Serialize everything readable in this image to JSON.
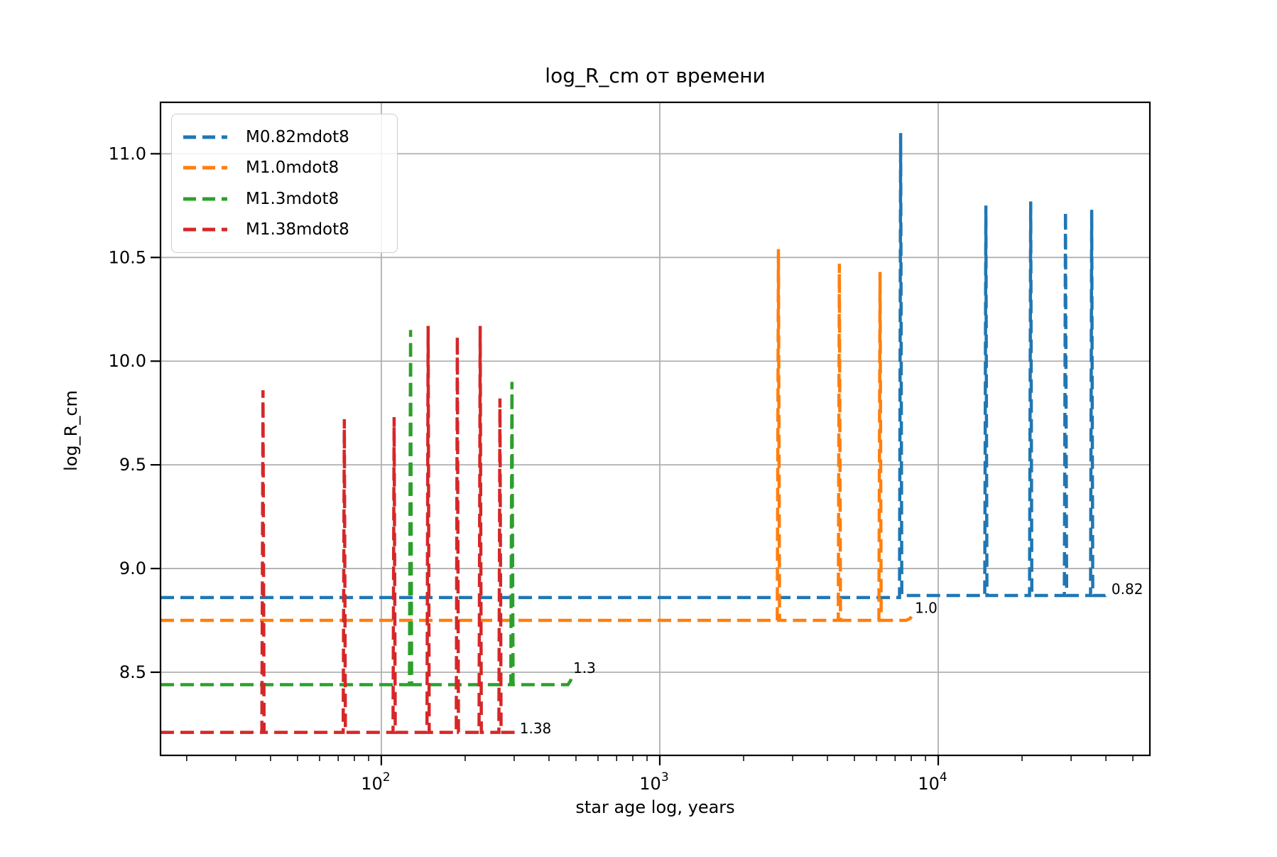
{
  "chart_data": {
    "type": "line",
    "title": "log_R_cm от времени",
    "xlabel": "star age log, years",
    "ylabel": "log_R_cm",
    "x_scale": "log",
    "grid": true,
    "legend_position": "upper left",
    "xlim_log": [
      1.207,
      4.76
    ],
    "ylim": [
      8.099,
      11.248
    ],
    "x_ticks": [
      {
        "base": "10",
        "exponent": "2",
        "log": 2
      },
      {
        "base": "10",
        "exponent": "3",
        "log": 3
      },
      {
        "base": "10",
        "exponent": "4",
        "log": 4
      }
    ],
    "y_ticks": [
      {
        "label": "8.5",
        "value": 8.5
      },
      {
        "label": "9.0",
        "value": 9.0
      },
      {
        "label": "9.5",
        "value": 9.5
      },
      {
        "label": "10.0",
        "value": 10.0
      },
      {
        "label": "10.5",
        "value": 10.5
      },
      {
        "label": "11.0",
        "value": 11.0
      }
    ],
    "series": [
      {
        "name": "M0.82mdot8",
        "color": "#1f77b4",
        "linestyle": "dashed",
        "baseline_log_R": 8.86,
        "spikes_log_age_peak": [
          [
            3.865,
            11.1
          ],
          [
            4.171,
            10.75
          ],
          [
            4.332,
            10.77
          ],
          [
            4.457,
            10.72
          ],
          [
            4.551,
            10.73
          ]
        ],
        "points": [
          [
            1.207,
            8.86
          ],
          [
            3.861,
            8.86
          ],
          [
            3.865,
            11.1
          ],
          [
            3.869,
            8.87
          ],
          [
            4.167,
            8.87
          ],
          [
            4.171,
            10.75
          ],
          [
            4.175,
            8.87
          ],
          [
            4.328,
            8.87
          ],
          [
            4.332,
            10.77
          ],
          [
            4.336,
            8.87
          ],
          [
            4.453,
            8.87
          ],
          [
            4.457,
            10.72
          ],
          [
            4.461,
            8.87
          ],
          [
            4.547,
            8.87
          ],
          [
            4.551,
            10.73
          ],
          [
            4.555,
            8.87
          ],
          [
            4.6,
            8.87
          ],
          [
            4.615,
            8.89
          ]
        ]
      },
      {
        "name": "M1.0mdot8",
        "color": "#ff7f0e",
        "linestyle": "dashed",
        "baseline_log_R": 8.75,
        "spikes_log_age_peak": [
          [
            3.426,
            10.54
          ],
          [
            3.645,
            10.47
          ],
          [
            3.791,
            10.43
          ]
        ],
        "points": [
          [
            1.207,
            8.75
          ],
          [
            3.422,
            8.75
          ],
          [
            3.426,
            10.54
          ],
          [
            3.43,
            8.75
          ],
          [
            3.641,
            8.75
          ],
          [
            3.645,
            10.47
          ],
          [
            3.649,
            8.75
          ],
          [
            3.787,
            8.75
          ],
          [
            3.791,
            10.43
          ],
          [
            3.795,
            8.75
          ],
          [
            3.885,
            8.75
          ],
          [
            3.9,
            8.76
          ],
          [
            3.908,
            8.78
          ]
        ]
      },
      {
        "name": "M1.3mdot8",
        "color": "#2ca02c",
        "linestyle": "dashed",
        "baseline_log_R": 8.44,
        "spikes_log_age_peak": [
          [
            2.105,
            10.15
          ],
          [
            2.469,
            9.9
          ]
        ],
        "points": [
          [
            1.207,
            8.44
          ],
          [
            2.101,
            8.44
          ],
          [
            2.105,
            10.15
          ],
          [
            2.109,
            8.44
          ],
          [
            2.465,
            8.44
          ],
          [
            2.469,
            9.9
          ],
          [
            2.473,
            8.44
          ],
          [
            2.67,
            8.44
          ],
          [
            2.68,
            8.46
          ],
          [
            2.684,
            8.5
          ]
        ]
      },
      {
        "name": "M1.38mdot8",
        "color": "#d62728",
        "linestyle": "dashed",
        "baseline_log_R": 8.21,
        "spikes_log_age_peak": [
          [
            1.575,
            9.86
          ],
          [
            1.867,
            9.72
          ],
          [
            2.046,
            9.73
          ],
          [
            2.168,
            10.17
          ],
          [
            2.273,
            10.12
          ],
          [
            2.355,
            10.17
          ],
          [
            2.426,
            9.82
          ]
        ],
        "points": [
          [
            1.207,
            8.21
          ],
          [
            1.571,
            8.21
          ],
          [
            1.575,
            9.86
          ],
          [
            1.579,
            8.21
          ],
          [
            1.863,
            8.21
          ],
          [
            1.867,
            9.72
          ],
          [
            1.871,
            8.21
          ],
          [
            2.042,
            8.21
          ],
          [
            2.046,
            9.73
          ],
          [
            2.05,
            8.21
          ],
          [
            2.164,
            8.21
          ],
          [
            2.168,
            10.17
          ],
          [
            2.172,
            8.21
          ],
          [
            2.269,
            8.21
          ],
          [
            2.273,
            10.12
          ],
          [
            2.277,
            8.21
          ],
          [
            2.351,
            8.21
          ],
          [
            2.355,
            10.17
          ],
          [
            2.359,
            8.21
          ],
          [
            2.422,
            8.21
          ],
          [
            2.426,
            9.82
          ],
          [
            2.43,
            8.21
          ],
          [
            2.48,
            8.21
          ]
        ]
      }
    ],
    "annotations": [
      {
        "text": "0.82",
        "logx": 4.622,
        "y": 8.9
      },
      {
        "text": "1.0",
        "logx": 3.916,
        "y": 8.81
      },
      {
        "text": "1.3",
        "logx": 2.689,
        "y": 8.52
      },
      {
        "text": "1.38",
        "logx": 2.497,
        "y": 8.23
      }
    ],
    "colors": {
      "grid": "#b0b0b0",
      "spine": "#000000",
      "text": "#000000",
      "legend_border": "#cccccc"
    }
  }
}
